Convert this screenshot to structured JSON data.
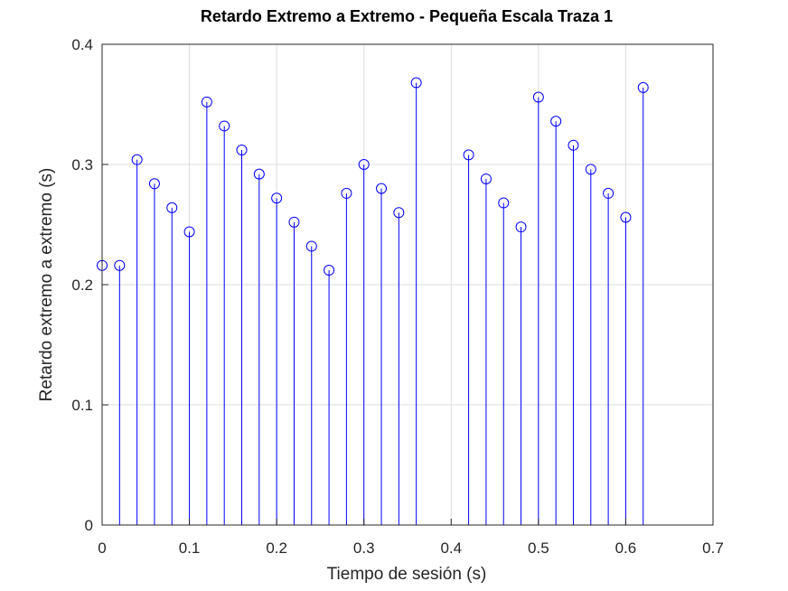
{
  "chart_data": {
    "type": "stem",
    "title": "Retardo Extremo a Extremo - Pequeña Escala Traza 1",
    "xlabel": "Tiempo de sesión (s)",
    "ylabel": "Retardo extremo a extremo (s)",
    "xlim": [
      0,
      0.7
    ],
    "ylim": [
      0,
      0.4
    ],
    "xticks": [
      "0",
      "0.1",
      "0.2",
      "0.3",
      "0.4",
      "0.5",
      "0.6",
      "0.7"
    ],
    "yticks": [
      "0",
      "0.1",
      "0.2",
      "0.3",
      "0.4"
    ],
    "grid": true,
    "marker": "circle",
    "color": "#0000ff",
    "series": [
      {
        "x": [
          0,
          0.02,
          0.04,
          0.06,
          0.08,
          0.1,
          0.12,
          0.14,
          0.16,
          0.18,
          0.2,
          0.22,
          0.24,
          0.26,
          0.28,
          0.3,
          0.32,
          0.34,
          0.36,
          0.42,
          0.44,
          0.46,
          0.48,
          0.5,
          0.52,
          0.54,
          0.56,
          0.58,
          0.6,
          0.62
        ],
        "y": [
          0.216,
          0.216,
          0.304,
          0.284,
          0.264,
          0.244,
          0.352,
          0.332,
          0.312,
          0.292,
          0.272,
          0.252,
          0.232,
          0.212,
          0.276,
          0.3,
          0.28,
          0.26,
          0.368,
          0.308,
          0.288,
          0.268,
          0.248,
          0.356,
          0.336,
          0.316,
          0.296,
          0.276,
          0.256,
          0.364
        ]
      }
    ]
  }
}
